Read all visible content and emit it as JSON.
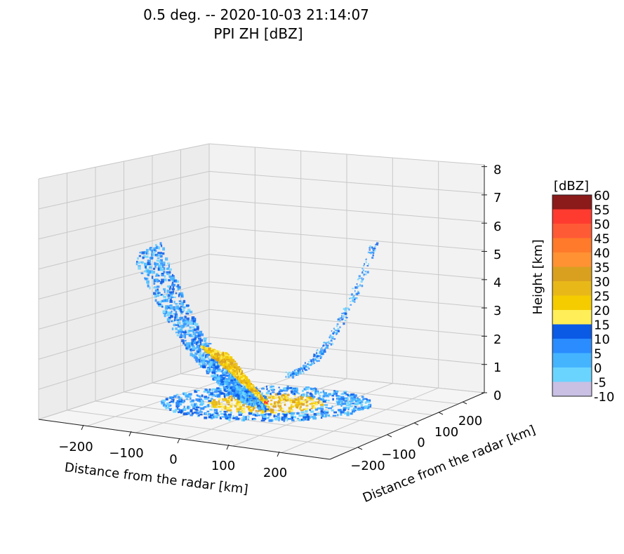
{
  "chart_data": {
    "type": "3d-surface",
    "title": "0.5 deg. -- 2020-10-03 21:14:07",
    "subtitle": "PPI ZH [dBZ]",
    "x_axis": {
      "label": "Distance from the radar [km]",
      "ticks": [
        "−200",
        "−100",
        "0",
        "100",
        "200"
      ],
      "range": [
        -280,
        280
      ]
    },
    "y_axis": {
      "label": "Distance from the radar [km]",
      "ticks": [
        "−200",
        "−100",
        "0",
        "100",
        "200"
      ],
      "range": [
        -280,
        280
      ]
    },
    "z_axis": {
      "label": "Height [km]",
      "ticks": [
        "0",
        "1",
        "2",
        "3",
        "4",
        "5",
        "6",
        "7",
        "8"
      ],
      "range": [
        0,
        8
      ]
    },
    "colorbar": {
      "title": "[dBZ]",
      "tick_labels": [
        "60",
        "55",
        "50",
        "45",
        "40",
        "35",
        "30",
        "25",
        "20",
        "15",
        "10",
        "5",
        "0",
        "-5",
        "-10"
      ],
      "colors": [
        "#8b1a1a",
        "#ff3b30",
        "#ff5a36",
        "#ff7a2a",
        "#ff9233",
        "#d9a020",
        "#e8b818",
        "#f5cc00",
        "#ffee58",
        "#0a5ae6",
        "#2a8cff",
        "#45b4ff",
        "#6ad4ff",
        "#c9c0e4",
        "#b09ccc"
      ]
    },
    "grid": true
  }
}
